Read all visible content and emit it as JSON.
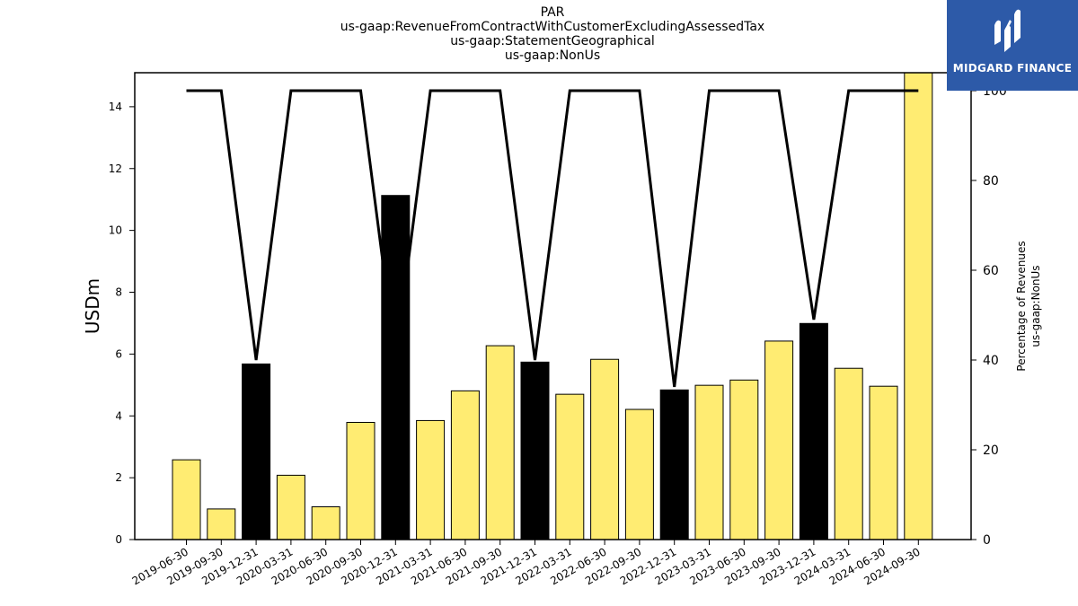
{
  "chart_data": {
    "type": "bar",
    "title_lines": [
      "PAR",
      "us-gaap:RevenueFromContractWithCustomerExcludingAssessedTax",
      "us-gaap:StatementGeographical",
      "us-gaap:NonUs"
    ],
    "ylabel": "USDm",
    "y2label_lines": [
      "Percentage of Revenues",
      "us-gaap:NonUs"
    ],
    "categories": [
      "2019-06-30",
      "2019-09-30",
      "2019-12-31",
      "2020-03-31",
      "2020-06-30",
      "2020-09-30",
      "2020-12-31",
      "2021-03-31",
      "2021-06-30",
      "2021-09-30",
      "2021-12-31",
      "2022-03-31",
      "2022-06-30",
      "2022-09-30",
      "2022-12-31",
      "2023-03-31",
      "2023-06-30",
      "2023-09-30",
      "2023-12-31",
      "2024-03-31",
      "2024-06-30",
      "2024-09-30"
    ],
    "values": [
      2.58,
      0.99,
      5.68,
      2.08,
      1.06,
      3.79,
      11.13,
      3.85,
      4.81,
      6.27,
      5.74,
      4.7,
      5.83,
      4.21,
      4.84,
      4.99,
      5.16,
      6.42,
      6.99,
      5.54,
      4.96,
      15.2
    ],
    "bar_fill": [
      "#ffec72",
      "#ffec72",
      "#000000",
      "#ffec72",
      "#ffec72",
      "#ffec72",
      "#000000",
      "#ffec72",
      "#ffec72",
      "#ffec72",
      "#000000",
      "#ffec72",
      "#ffec72",
      "#ffec72",
      "#000000",
      "#ffec72",
      "#ffec72",
      "#ffec72",
      "#000000",
      "#ffec72",
      "#ffec72",
      "#ffec72"
    ],
    "percentage_line": [
      100,
      100,
      40,
      100,
      100,
      100,
      40,
      100,
      100,
      100,
      40,
      100,
      100,
      100,
      34,
      100,
      100,
      100,
      49,
      100,
      100,
      100
    ],
    "ylim": [
      0,
      15.1
    ],
    "y2lim": [
      0,
      104
    ],
    "yticks": [
      0,
      2,
      4,
      6,
      8,
      10,
      12,
      14
    ],
    "y2ticks": [
      0,
      20,
      40,
      60,
      80,
      100
    ],
    "grid": false,
    "colors": {
      "bar_yellow": "#ffec72",
      "bar_black": "#000000",
      "line": "#000000"
    }
  },
  "logo": {
    "text": "MIDGARD FINANCE",
    "bg": "#2d5aa8"
  }
}
